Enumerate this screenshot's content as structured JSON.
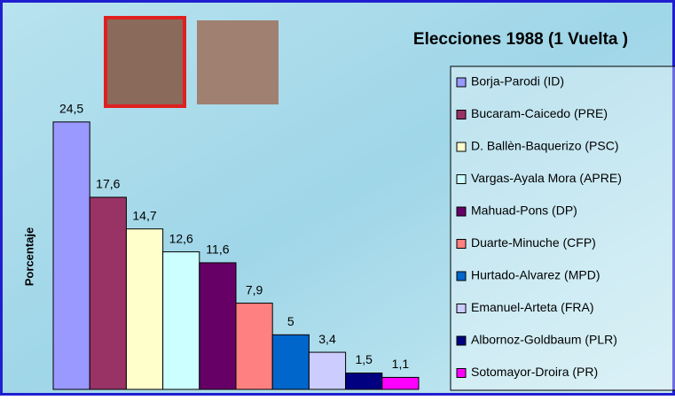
{
  "chart_data": {
    "type": "bar",
    "title": "Elecciones 1988 (1 Vuelta )",
    "y_label": "Porcentaje",
    "ylim": [
      0,
      30
    ],
    "legend": "right",
    "series": [
      {
        "name": "Borja-Parodi (ID)",
        "color": "#9999ff",
        "values": [
          24.5
        ],
        "value_labels": [
          "24,5"
        ]
      },
      {
        "name": "Bucaram-Caicedo (PRE)",
        "color": "#993366",
        "values": [
          17.6
        ],
        "value_labels": [
          "17,6"
        ]
      },
      {
        "name": "D. Ballèn-Baquerizo (PSC)",
        "color": "#ffffcc",
        "values": [
          14.7
        ],
        "value_labels": [
          "14,7"
        ]
      },
      {
        "name": "Vargas-Ayala Mora (APRE)",
        "color": "#ccffff",
        "values": [
          12.6
        ],
        "value_labels": [
          "12,6"
        ]
      },
      {
        "name": "Mahuad-Pons (DP)",
        "color": "#660066",
        "values": [
          11.6
        ],
        "value_labels": [
          "11,6"
        ]
      },
      {
        "name": "Duarte-Minuche (CFP)",
        "color": "#ff8080",
        "values": [
          7.9
        ],
        "value_labels": [
          "7,9"
        ]
      },
      {
        "name": "Hurtado-Alvarez (MPD)",
        "color": "#0066cc",
        "values": [
          5
        ]
      },
      {
        "name": "Emanuel-Arteta (FRA)",
        "color": "#ccccff",
        "values": [
          3.4
        ],
        "value_labels": [
          "3,4"
        ]
      },
      {
        "name": "Albornoz-Goldbaum (PLR)",
        "color": "#000080",
        "values": [
          1.5
        ],
        "value_labels": [
          "1,5"
        ]
      },
      {
        "name": "Sotomayor-Droira (PR)",
        "color": "#ff00ff",
        "values": [
          1.1
        ],
        "value_labels": [
          "1,1"
        ]
      }
    ]
  }
}
